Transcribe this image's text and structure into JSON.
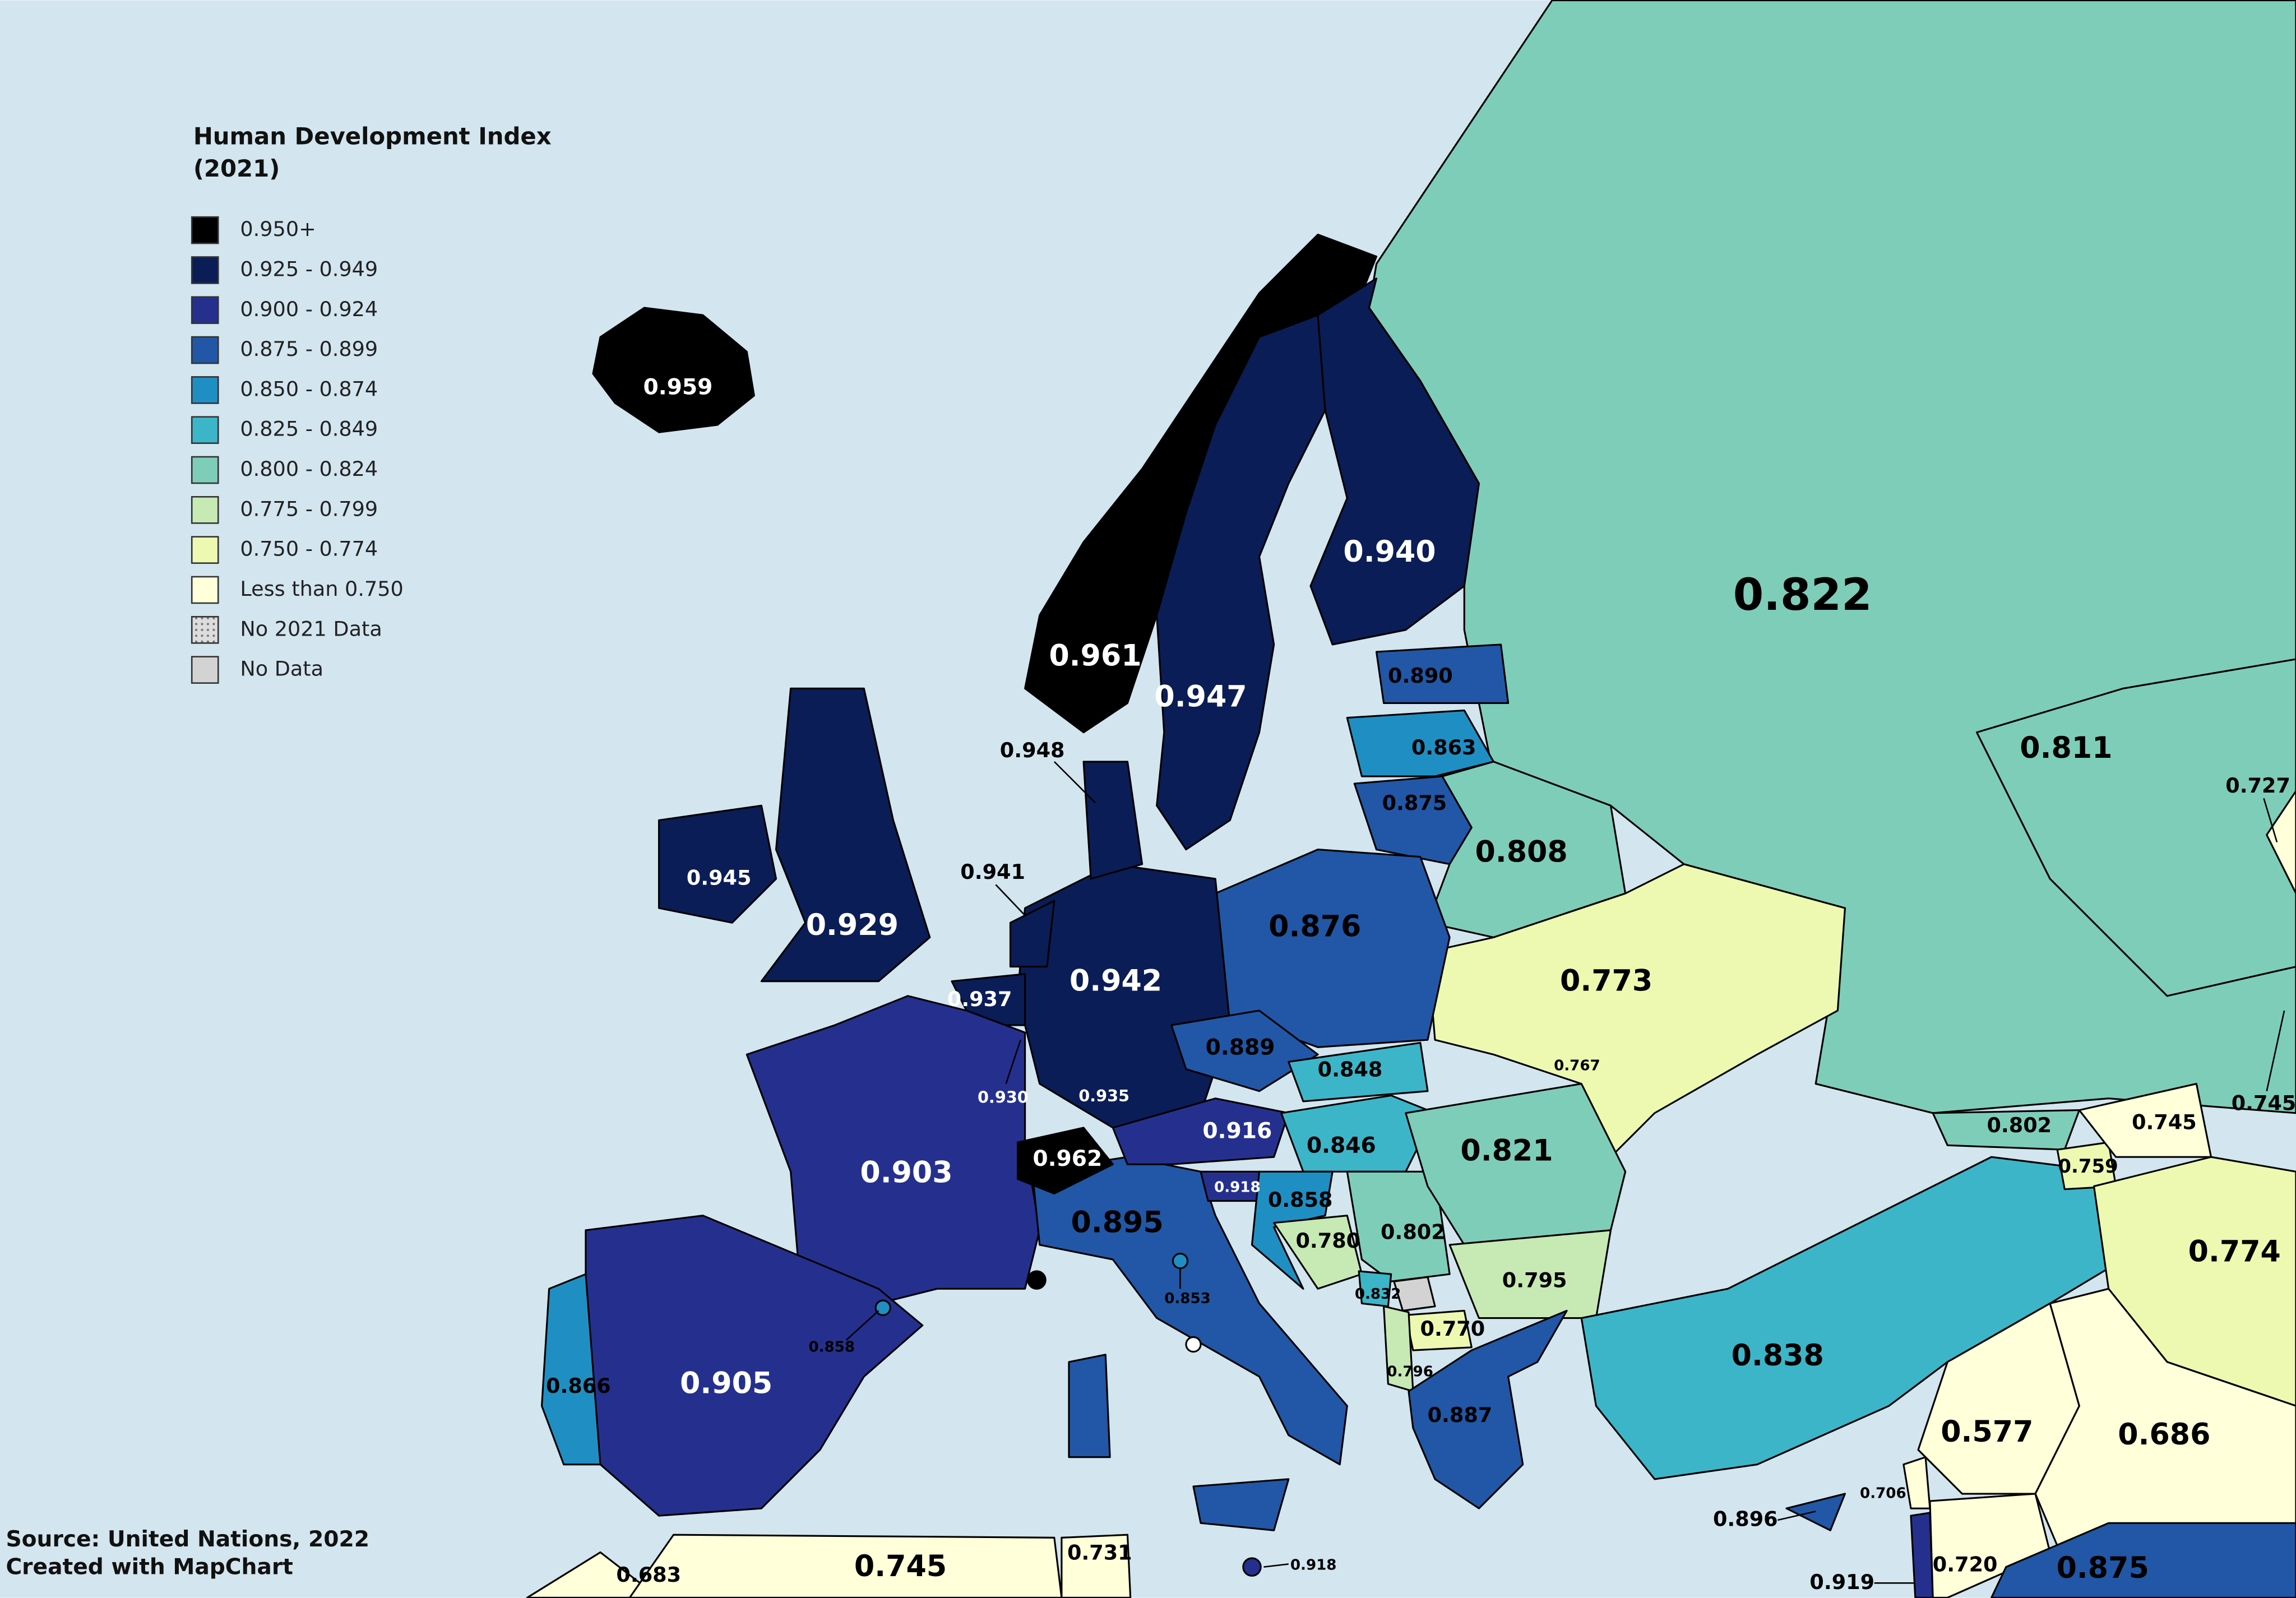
{
  "legend": {
    "title": "Human Development Index",
    "subtitle": "(2021)",
    "items": [
      {
        "label": "0.950+",
        "color": "#000000"
      },
      {
        "label": "0.925 - 0.949",
        "color": "#0b1d57"
      },
      {
        "label": "0.900 - 0.924",
        "color": "#25308e"
      },
      {
        "label": "0.875 - 0.899",
        "color": "#2157a6"
      },
      {
        "label": "0.850 - 0.874",
        "color": "#1f8fc3"
      },
      {
        "label": "0.825 - 0.849",
        "color": "#3db5c8"
      },
      {
        "label": "0.800 - 0.824",
        "color": "#7ecdb9"
      },
      {
        "label": "0.775 - 0.799",
        "color": "#c7e9b4"
      },
      {
        "label": "0.750 - 0.774",
        "color": "#edf8b1"
      },
      {
        "label": "Less than 0.750",
        "color": "#ffffd9"
      },
      {
        "label": "No 2021 Data",
        "color": "#cccccc",
        "pattern": "dots"
      },
      {
        "label": "No Data",
        "color": "#d3d3d3"
      }
    ]
  },
  "labels": [
    "0.959",
    "0.961",
    "0.947",
    "0.940",
    "0.822",
    "0.890",
    "0.863",
    "0.875",
    "0.808",
    "0.811",
    "0.727",
    "0.948",
    "0.941",
    "0.945",
    "0.929",
    "0.937",
    "0.942",
    "0.876",
    "0.773",
    "0.889",
    "0.930",
    "0.935",
    "0.848",
    "0.767",
    "0.916",
    "0.962",
    "0.846",
    "0.821",
    "0.802",
    "0.745",
    "0.745",
    "0.903",
    "0.918",
    "0.858",
    "0.895",
    "0.802",
    "0.759",
    "0.774",
    "0.780",
    "0.853",
    "0.795",
    "0.832",
    "0.770",
    "0.858",
    "0.838",
    "0.866",
    "0.905",
    "0.796",
    "0.887",
    "0.577",
    "0.686",
    "0.706",
    "0.896",
    "0.720",
    "0.919",
    "0.875",
    "0.745",
    "0.683",
    "0.731",
    "0.918"
  ],
  "footer": {
    "source": "Source: United Nations, 2022",
    "credit": "Created with MapChart"
  }
}
